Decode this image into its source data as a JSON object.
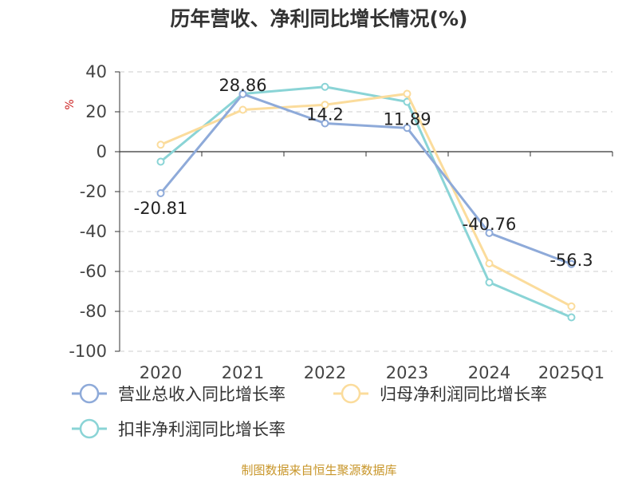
{
  "title": "历年营收、净利同比增长情况(%)",
  "source": "制图数据来自恒生聚源数据库",
  "chart_data": {
    "type": "line",
    "title": "历年营收、净利同比增长情况(%)",
    "ylabel": "%",
    "xlabel": "",
    "ylim": [
      -100,
      40
    ],
    "yticks": [
      40,
      20,
      0,
      -20,
      -40,
      -60,
      -80,
      -100
    ],
    "categories": [
      "2020",
      "2021",
      "2022",
      "2023",
      "2024",
      "2025Q1"
    ],
    "grid": true,
    "legend_position": "bottom",
    "series": [
      {
        "name": "营业总收入同比增长率",
        "color": "#8eaad9",
        "values": [
          -20.81,
          28.86,
          14.2,
          11.89,
          -40.76,
          -56.3
        ],
        "labels": [
          "-20.81",
          "28.86",
          "14.2",
          "11.89",
          "-40.76",
          "-56.3"
        ]
      },
      {
        "name": "归母净利润同比增长率",
        "color": "#fbdc9c",
        "values": [
          3.5,
          21,
          23.5,
          29,
          -56,
          -77.5
        ]
      },
      {
        "name": "扣非净利润同比增长率",
        "color": "#8ad4d6",
        "values": [
          -5,
          29,
          32.5,
          25,
          -65.5,
          -83
        ]
      }
    ]
  }
}
